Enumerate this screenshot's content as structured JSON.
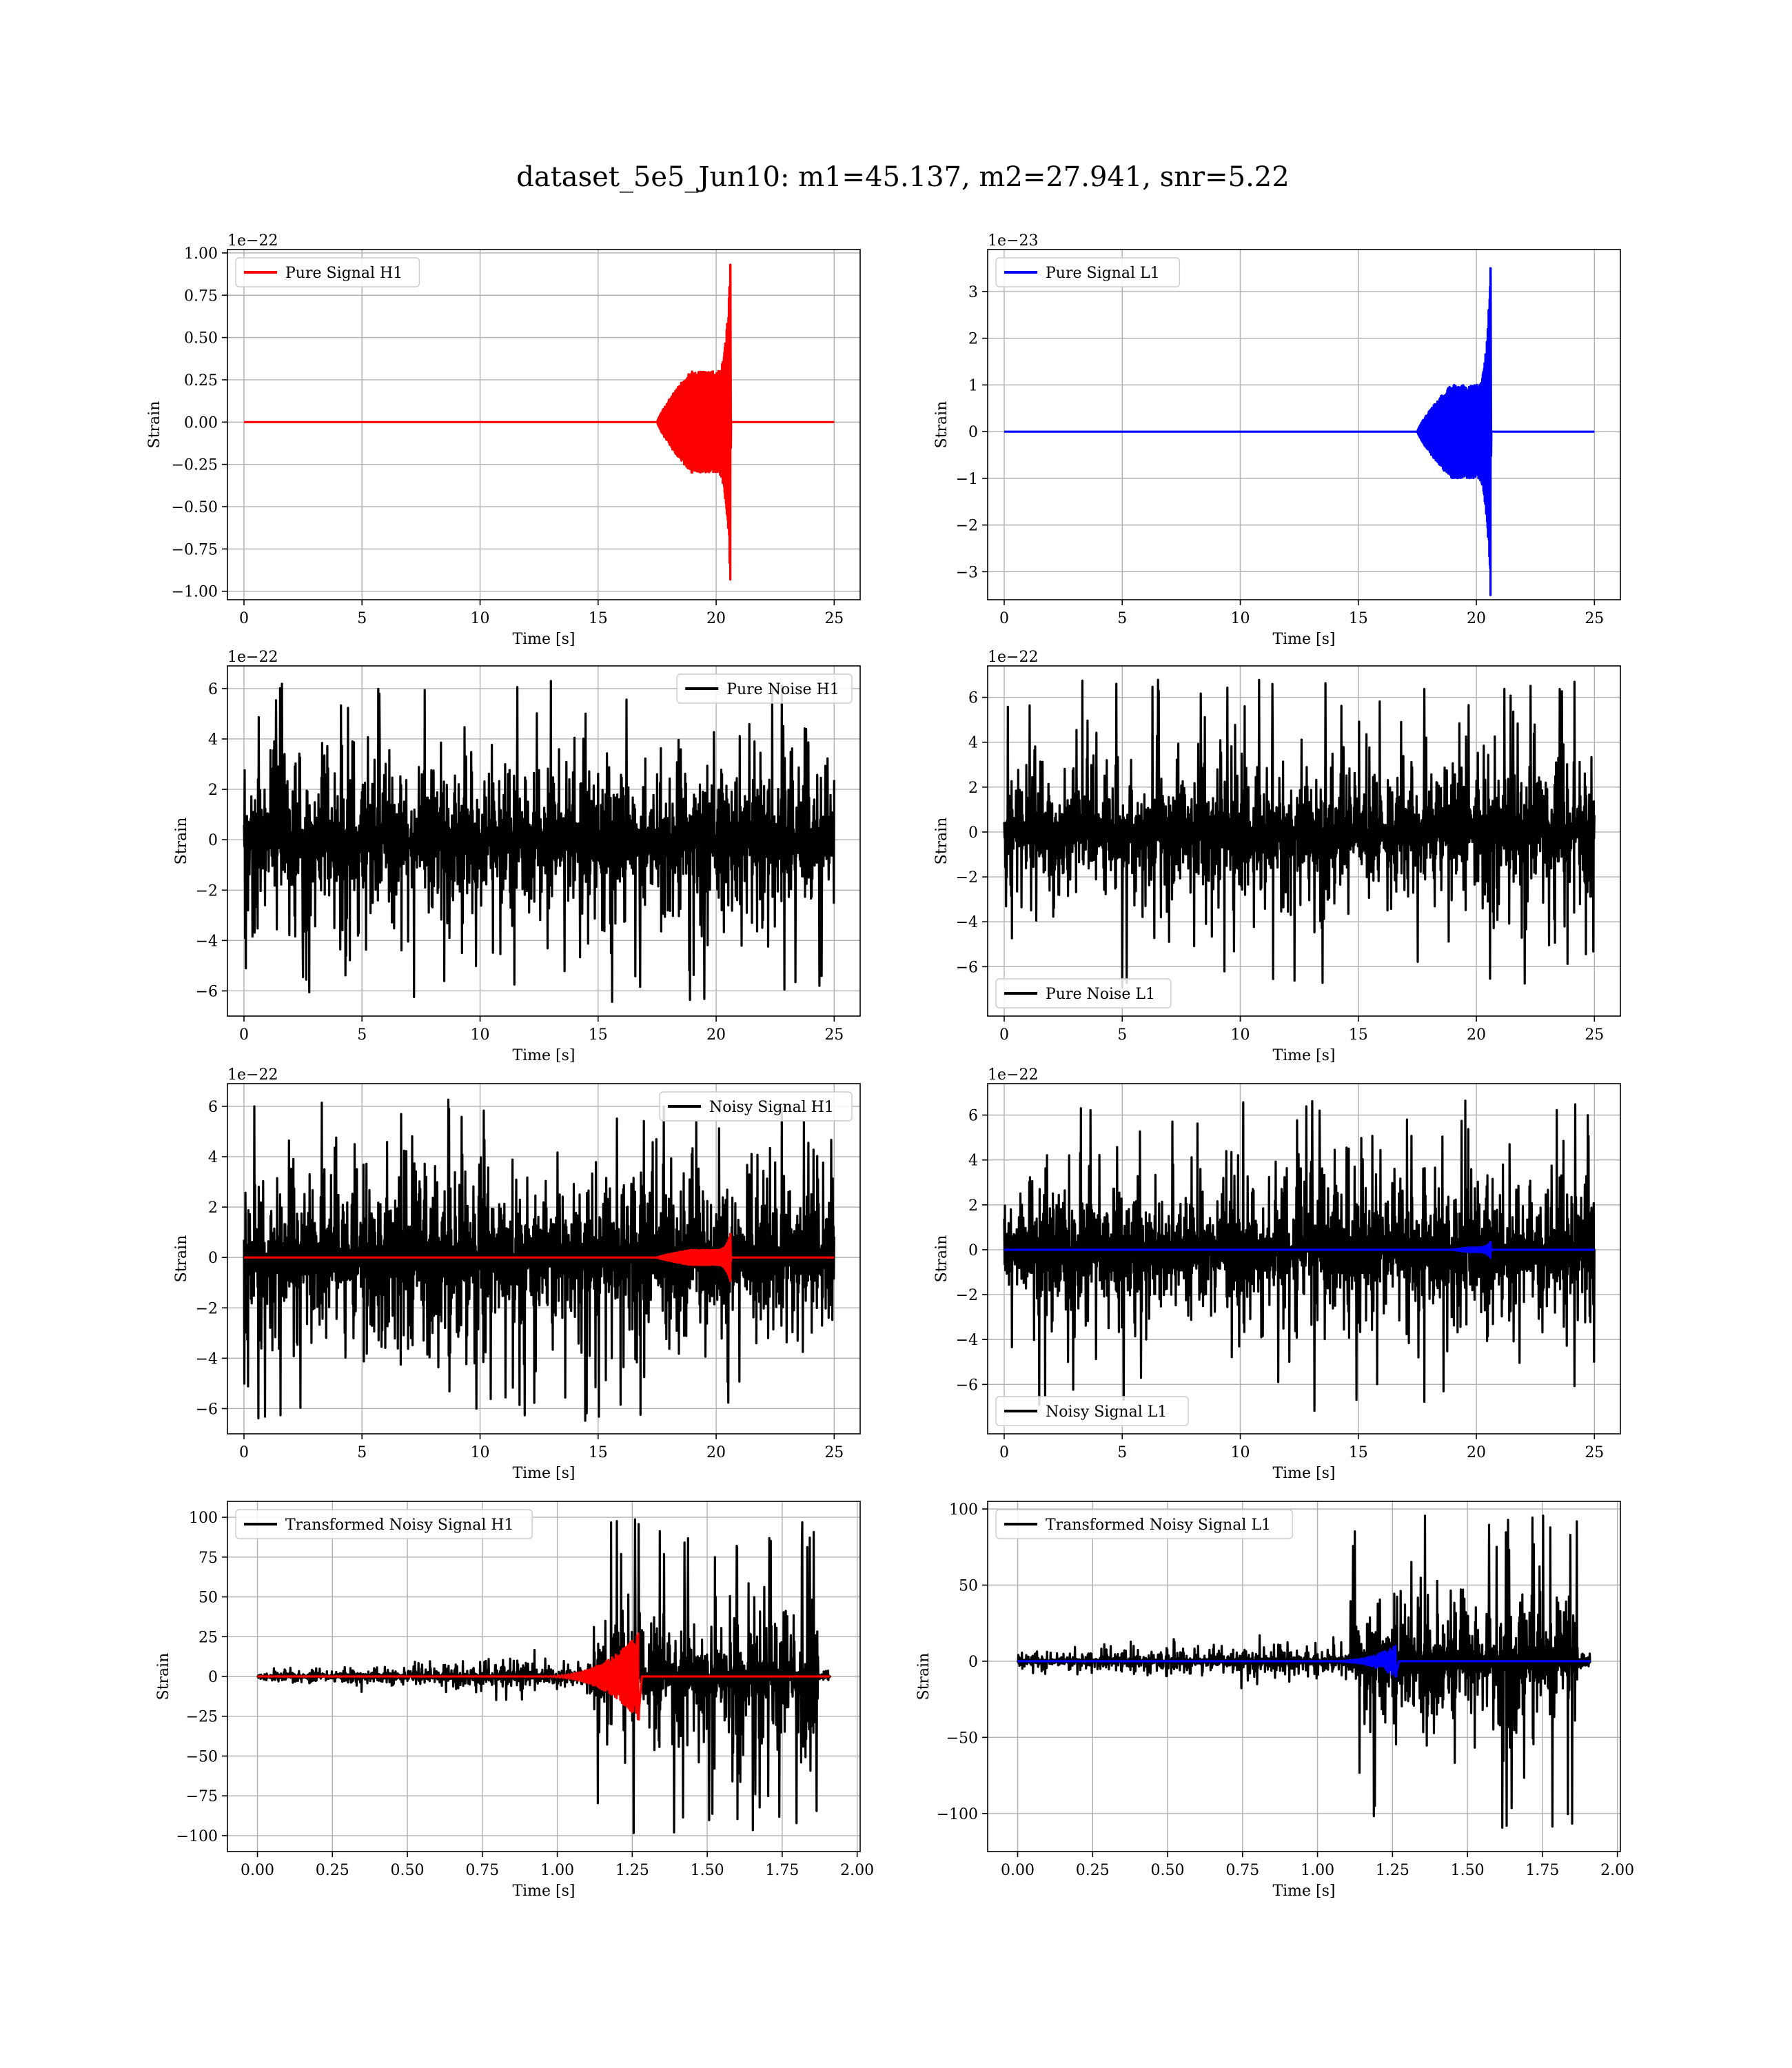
{
  "figure": {
    "title": "dataset_5e5_Jun10: m1=45.137, m2=27.941, snr=5.22"
  },
  "chart_data": [
    {
      "id": "pure-signal-h1",
      "type": "line",
      "ylabel": "Strain",
      "xlabel": "Time [s]",
      "offset_text": "1e−22",
      "xlim": [
        -0.7,
        26.1
      ],
      "ylim": [
        -1.05,
        1.02
      ],
      "x_ticks": [
        0,
        5,
        10,
        15,
        20,
        25
      ],
      "x_tick_labels": [
        "0",
        "5",
        "10",
        "15",
        "20",
        "25"
      ],
      "y_ticks": [
        -1.0,
        -0.75,
        -0.5,
        -0.25,
        0.0,
        0.25,
        0.5,
        0.75,
        1.0
      ],
      "y_tick_labels": [
        "−1.00",
        "−0.75",
        "−0.50",
        "−0.25",
        "0.00",
        "0.25",
        "0.50",
        "0.75",
        "1.00"
      ],
      "grid": true,
      "legend_position": "upper-left",
      "legend": [
        {
          "label": "Pure Signal H1",
          "color": "#ff0000"
        }
      ],
      "series": [
        {
          "name": "Pure Signal H1",
          "color": "#ff0000",
          "kind": "chirp",
          "x_start": 0,
          "x_end": 25,
          "merger_t": 20.6,
          "onset_t": 17.5,
          "amp_plateau": 0.3,
          "amp_peak": 0.93
        }
      ]
    },
    {
      "id": "pure-signal-l1",
      "type": "line",
      "ylabel": "Strain",
      "xlabel": "Time [s]",
      "offset_text": "1e−23",
      "xlim": [
        -0.7,
        26.1
      ],
      "ylim": [
        -3.6,
        3.9
      ],
      "x_ticks": [
        0,
        5,
        10,
        15,
        20,
        25
      ],
      "x_tick_labels": [
        "0",
        "5",
        "10",
        "15",
        "20",
        "25"
      ],
      "y_ticks": [
        -3,
        -2,
        -1,
        0,
        1,
        2,
        3
      ],
      "y_tick_labels": [
        "−3",
        "−2",
        "−1",
        "0",
        "1",
        "2",
        "3"
      ],
      "grid": true,
      "legend_position": "upper-left",
      "legend": [
        {
          "label": "Pure Signal L1",
          "color": "#0000ff"
        }
      ],
      "series": [
        {
          "name": "Pure Signal L1",
          "color": "#0000ff",
          "kind": "chirp",
          "x_start": 0,
          "x_end": 25,
          "merger_t": 20.6,
          "onset_t": 17.5,
          "amp_plateau": 1.0,
          "amp_peak": 3.5
        }
      ]
    },
    {
      "id": "pure-noise-h1",
      "type": "line",
      "ylabel": "Strain",
      "xlabel": "Time [s]",
      "offset_text": "1e−22",
      "xlim": [
        -0.7,
        26.1
      ],
      "ylim": [
        -7.0,
        6.9
      ],
      "x_ticks": [
        0,
        5,
        10,
        15,
        20,
        25
      ],
      "x_tick_labels": [
        "0",
        "5",
        "10",
        "15",
        "20",
        "25"
      ],
      "y_ticks": [
        -6,
        -4,
        -2,
        0,
        2,
        4,
        6
      ],
      "y_tick_labels": [
        "−6",
        "−4",
        "−2",
        "0",
        "2",
        "4",
        "6"
      ],
      "grid": true,
      "legend_position": "upper-right",
      "legend": [
        {
          "label": "Pure Noise H1",
          "color": "#000000"
        }
      ],
      "series": [
        {
          "name": "Pure Noise H1",
          "color": "#000000",
          "kind": "noise",
          "x_start": 0,
          "x_end": 25,
          "band": 3.6,
          "max": 6.3,
          "min": -6.5
        }
      ]
    },
    {
      "id": "pure-noise-l1",
      "type": "line",
      "ylabel": "Strain",
      "xlabel": "Time [s]",
      "offset_text": "1e−22",
      "xlim": [
        -0.7,
        26.1
      ],
      "ylim": [
        -8.2,
        7.4
      ],
      "x_ticks": [
        0,
        5,
        10,
        15,
        20,
        25
      ],
      "x_tick_labels": [
        "0",
        "5",
        "10",
        "15",
        "20",
        "25"
      ],
      "y_ticks": [
        -6,
        -4,
        -2,
        0,
        2,
        4,
        6
      ],
      "y_tick_labels": [
        "−6",
        "−4",
        "−2",
        "0",
        "2",
        "4",
        "6"
      ],
      "grid": true,
      "legend_position": "lower-left",
      "legend": [
        {
          "label": "Pure Noise L1",
          "color": "#000000"
        }
      ],
      "series": [
        {
          "name": "Pure Noise L1",
          "color": "#000000",
          "kind": "noise",
          "x_start": 0,
          "x_end": 25,
          "band": 3.6,
          "max": 6.8,
          "min": -7.3
        }
      ]
    },
    {
      "id": "noisy-signal-h1",
      "type": "line",
      "ylabel": "Strain",
      "xlabel": "Time [s]",
      "offset_text": "1e−22",
      "xlim": [
        -0.7,
        26.1
      ],
      "ylim": [
        -7.0,
        6.9
      ],
      "x_ticks": [
        0,
        5,
        10,
        15,
        20,
        25
      ],
      "x_tick_labels": [
        "0",
        "5",
        "10",
        "15",
        "20",
        "25"
      ],
      "y_ticks": [
        -6,
        -4,
        -2,
        0,
        2,
        4,
        6
      ],
      "y_tick_labels": [
        "−6",
        "−4",
        "−2",
        "0",
        "2",
        "4",
        "6"
      ],
      "grid": true,
      "legend_position": "upper-right",
      "legend": [
        {
          "label": "Noisy Signal H1",
          "color": "#000000"
        }
      ],
      "series": [
        {
          "name": "Noisy Signal H1",
          "color": "#000000",
          "kind": "noise",
          "x_start": 0,
          "x_end": 25,
          "band": 3.6,
          "max": 6.3,
          "min": -6.5
        },
        {
          "name": "Pure Signal H1",
          "color": "#ff0000",
          "kind": "chirp",
          "x_start": 0,
          "x_end": 25,
          "merger_t": 20.6,
          "onset_t": 17.5,
          "amp_plateau": 0.3,
          "amp_peak": 0.93
        }
      ]
    },
    {
      "id": "noisy-signal-l1",
      "type": "line",
      "ylabel": "Strain",
      "xlabel": "Time [s]",
      "offset_text": "1e−22",
      "xlim": [
        -0.7,
        26.1
      ],
      "ylim": [
        -8.2,
        7.4
      ],
      "x_ticks": [
        0,
        5,
        10,
        15,
        20,
        25
      ],
      "x_tick_labels": [
        "0",
        "5",
        "10",
        "15",
        "20",
        "25"
      ],
      "y_ticks": [
        -6,
        -4,
        -2,
        0,
        2,
        4,
        6
      ],
      "y_tick_labels": [
        "−6",
        "−4",
        "−2",
        "0",
        "2",
        "4",
        "6"
      ],
      "grid": true,
      "legend_position": "lower-left",
      "legend": [
        {
          "label": "Noisy Signal L1",
          "color": "#000000"
        }
      ],
      "series": [
        {
          "name": "Noisy Signal L1",
          "color": "#000000",
          "kind": "noise",
          "x_start": 0,
          "x_end": 25,
          "band": 3.6,
          "max": 6.8,
          "min": -7.3
        },
        {
          "name": "Pure Signal L1",
          "color": "#0000ff",
          "kind": "chirp",
          "x_start": 0,
          "x_end": 25,
          "merger_t": 20.6,
          "onset_t": 19.0,
          "amp_plateau": 0.1,
          "amp_peak": 0.35
        }
      ]
    },
    {
      "id": "transformed-noisy-signal-h1",
      "type": "line",
      "ylabel": "Strain",
      "xlabel": "Time [s]",
      "offset_text": "",
      "xlim": [
        -0.1,
        2.01
      ],
      "ylim": [
        -110,
        110
      ],
      "x_ticks": [
        0.0,
        0.25,
        0.5,
        0.75,
        1.0,
        1.25,
        1.5,
        1.75,
        2.0
      ],
      "x_tick_labels": [
        "0.00",
        "0.25",
        "0.50",
        "0.75",
        "1.00",
        "1.25",
        "1.50",
        "1.75",
        "2.00"
      ],
      "y_ticks": [
        -100,
        -75,
        -50,
        -25,
        0,
        25,
        50,
        75,
        100
      ],
      "y_tick_labels": [
        "−100",
        "−75",
        "−50",
        "−25",
        "0",
        "25",
        "50",
        "75",
        "100"
      ],
      "grid": true,
      "legend_position": "upper-left",
      "legend": [
        {
          "label": "Transformed Noisy Signal H1",
          "color": "#000000"
        }
      ],
      "series": [
        {
          "name": "Transformed Noisy Signal H1",
          "color": "#000000",
          "kind": "transformed",
          "x_start": 0,
          "x_end": 1.91,
          "jump_t": 1.12,
          "cut_t": 1.87,
          "band_start": 4,
          "band_pre": 12,
          "band_post": 55,
          "max": 100,
          "min": -100
        },
        {
          "name": "",
          "color": "#ff0000",
          "kind": "tchirp",
          "x_start": 0,
          "x_end": 1.91,
          "onset_t": 0.9,
          "peak_t": 1.27,
          "amp_peak": 27
        }
      ]
    },
    {
      "id": "transformed-noisy-signal-l1",
      "type": "line",
      "ylabel": "Strain",
      "xlabel": "Time [s]",
      "offset_text": "",
      "xlim": [
        -0.1,
        2.01
      ],
      "ylim": [
        -125,
        105
      ],
      "x_ticks": [
        0.0,
        0.25,
        0.5,
        0.75,
        1.0,
        1.25,
        1.5,
        1.75,
        2.0
      ],
      "x_tick_labels": [
        "0.00",
        "0.25",
        "0.50",
        "0.75",
        "1.00",
        "1.25",
        "1.50",
        "1.75",
        "2.00"
      ],
      "y_ticks": [
        -100,
        -50,
        0,
        50,
        100
      ],
      "y_tick_labels": [
        "−100",
        "−50",
        "0",
        "50",
        "100"
      ],
      "grid": true,
      "legend_position": "upper-left",
      "legend": [
        {
          "label": "Transformed Noisy Signal L1",
          "color": "#000000"
        }
      ],
      "series": [
        {
          "name": "Transformed Noisy Signal L1",
          "color": "#000000",
          "kind": "transformed",
          "x_start": 0,
          "x_end": 1.91,
          "jump_t": 1.11,
          "cut_t": 1.87,
          "band_start": 6,
          "band_pre": 14,
          "band_post": 55,
          "max": 97,
          "min": -112
        },
        {
          "name": "",
          "color": "#0000ff",
          "kind": "tchirp",
          "x_start": 0,
          "x_end": 1.91,
          "onset_t": 1.0,
          "peak_t": 1.26,
          "amp_peak": 10
        }
      ]
    }
  ]
}
